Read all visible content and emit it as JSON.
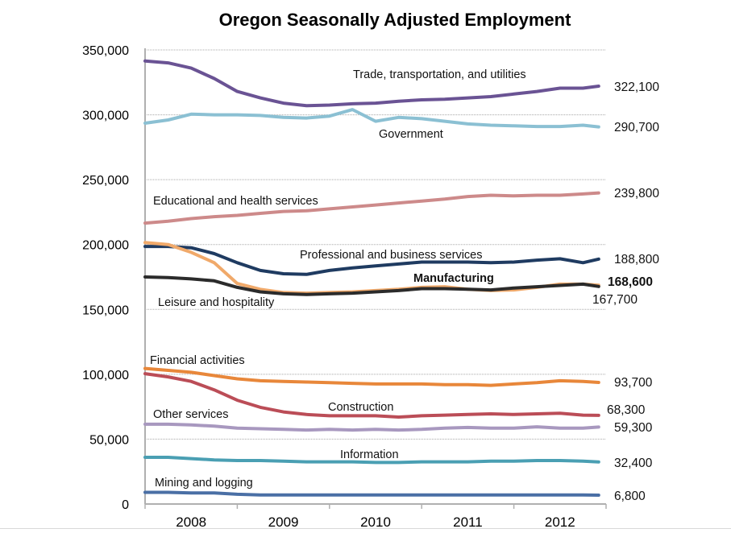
{
  "chart_data": {
    "type": "line",
    "title": "Oregon Seasonally Adjusted Employment",
    "xlabel": "",
    "ylabel": "",
    "ylim": [
      0,
      350000
    ],
    "yticks": [
      0,
      50000,
      100000,
      150000,
      200000,
      250000,
      300000,
      350000
    ],
    "ytick_labels": [
      "0",
      "50,000",
      "100,000",
      "150,000",
      "200,000",
      "250,000",
      "300,000",
      "350,000"
    ],
    "xtick_labels": [
      "2008",
      "2009",
      "2010",
      "2011",
      "2012"
    ],
    "x_range": [
      "Jan 2008",
      "Dec 2012"
    ],
    "grid": "horizontal dotted",
    "legend": "inline labels",
    "x": [
      2008.0,
      2008.25,
      2008.5,
      2008.75,
      2009.0,
      2009.25,
      2009.5,
      2009.75,
      2010.0,
      2010.25,
      2010.5,
      2010.75,
      2011.0,
      2011.25,
      2011.5,
      2011.75,
      2012.0,
      2012.25,
      2012.5,
      2012.75,
      2012.92
    ],
    "series": [
      {
        "name": "Trade, transportation, and utilities",
        "color": "#6a5394",
        "end_label": "322,100",
        "values": [
          341500,
          340000,
          336000,
          328000,
          318000,
          313000,
          309000,
          307000,
          307500,
          308500,
          309000,
          310500,
          311500,
          312000,
          313000,
          314000,
          316000,
          318000,
          320500,
          320500,
          322100
        ]
      },
      {
        "name": "Government",
        "color": "#8bc0d3",
        "end_label": "290,700",
        "values": [
          293500,
          296000,
          300500,
          300000,
          300000,
          299500,
          298000,
          297500,
          299000,
          304000,
          295000,
          298000,
          297000,
          295000,
          293000,
          292000,
          291500,
          291000,
          291000,
          292000,
          290700
        ]
      },
      {
        "name": "Educational and health services",
        "color": "#cd8a8a",
        "end_label": "239,800",
        "values": [
          216500,
          218000,
          220000,
          221500,
          222500,
          224000,
          225500,
          226000,
          227500,
          229000,
          230500,
          232000,
          233500,
          235000,
          237000,
          238000,
          237500,
          238000,
          238000,
          239000,
          239800
        ]
      },
      {
        "name": "Professional and business services",
        "color": "#1f3b61",
        "end_label": "188,800",
        "values": [
          198500,
          198500,
          197500,
          193000,
          186000,
          180000,
          177500,
          177000,
          180000,
          182000,
          183500,
          185000,
          186500,
          186500,
          186500,
          186000,
          186500,
          188000,
          189000,
          186000,
          188800
        ]
      },
      {
        "name": "Manufacturing",
        "color": "#f0a96a",
        "label_color": "#e07a27",
        "end_label": "168,600",
        "end_label_color": "#f0a96a",
        "values": [
          201500,
          200000,
          194000,
          186000,
          170000,
          165500,
          163000,
          162500,
          163000,
          163500,
          164500,
          165500,
          167000,
          167500,
          165500,
          164500,
          165000,
          167000,
          169500,
          169500,
          168600
        ]
      },
      {
        "name": "Leisure and hospitality",
        "color": "#2b2b2b",
        "end_label": "167,700",
        "values": [
          175000,
          174500,
          173500,
          172000,
          167000,
          163500,
          162000,
          161500,
          162000,
          162500,
          163500,
          164500,
          166000,
          166000,
          165500,
          165000,
          166500,
          167500,
          168500,
          169500,
          167700
        ]
      },
      {
        "name": "Financial activities",
        "color": "#e8873a",
        "end_label": "93,700",
        "values": [
          104500,
          103000,
          101500,
          99000,
          96500,
          95000,
          94500,
          94000,
          93500,
          93000,
          92500,
          92500,
          92500,
          92000,
          92000,
          91500,
          92500,
          93500,
          95000,
          94500,
          93700
        ]
      },
      {
        "name": "Construction",
        "color": "#bb4d57",
        "end_label": "68,300",
        "values": [
          100500,
          98000,
          94500,
          88000,
          80000,
          74500,
          71000,
          69000,
          68000,
          68000,
          68000,
          67000,
          68000,
          68500,
          69000,
          69500,
          69000,
          69500,
          70000,
          68500,
          68300
        ]
      },
      {
        "name": "Other services",
        "color": "#a898bf",
        "end_label": "59,300",
        "values": [
          61500,
          61500,
          61000,
          60000,
          58500,
          58000,
          57500,
          57000,
          57500,
          57000,
          57500,
          57000,
          57500,
          58500,
          59000,
          58500,
          58500,
          59500,
          58500,
          58500,
          59300
        ]
      },
      {
        "name": "Information",
        "color": "#4a9fb3",
        "end_label": "32,400",
        "values": [
          36000,
          36000,
          35000,
          34000,
          33500,
          33500,
          33000,
          32500,
          32500,
          32500,
          32000,
          32000,
          32500,
          32500,
          32500,
          33000,
          33000,
          33500,
          33500,
          33000,
          32400
        ]
      },
      {
        "name": "Mining and logging",
        "color": "#4a6fa5",
        "end_label": "6,800",
        "values": [
          9000,
          9000,
          8500,
          8500,
          7500,
          7000,
          7000,
          7000,
          7000,
          7000,
          7000,
          7000,
          7000,
          7000,
          7000,
          7000,
          7000,
          7000,
          7000,
          7000,
          6800
        ]
      }
    ]
  }
}
